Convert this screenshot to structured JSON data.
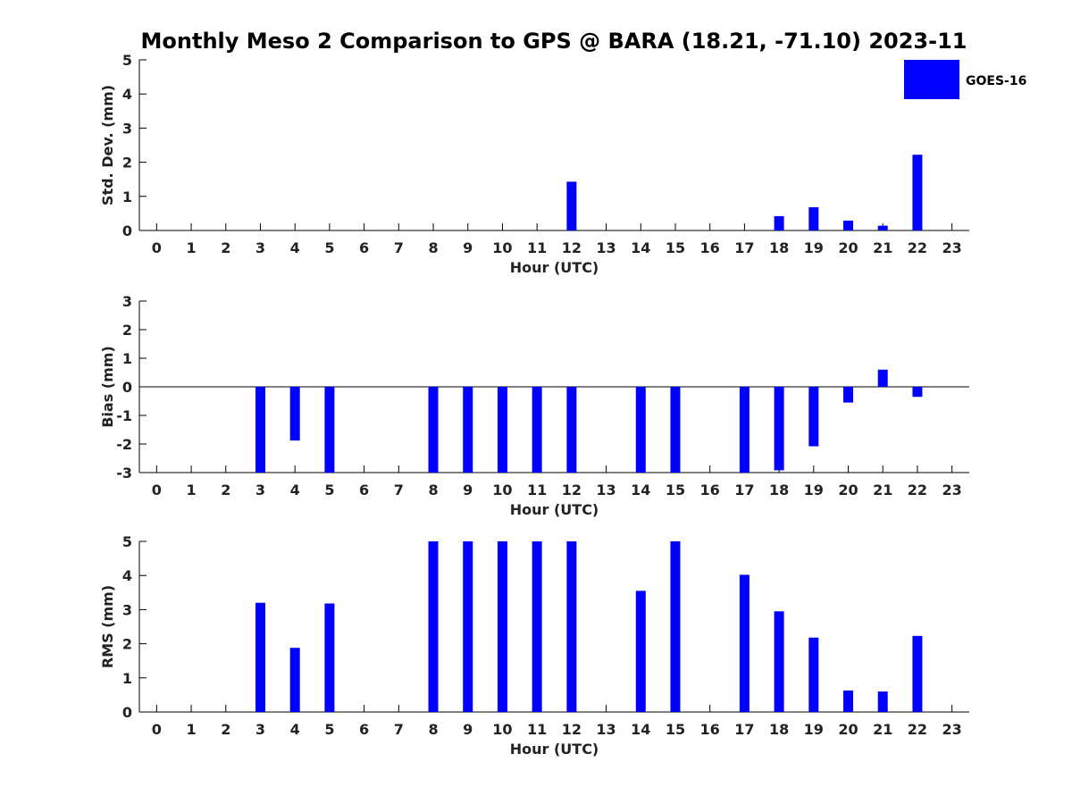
{
  "chart_data": {
    "title": "Monthly Meso 2 Comparison to GPS @ BARA (18.21, -71.10) 2023-11",
    "legend": {
      "label": "GOES-16",
      "color": "#0000FF",
      "placement": "top-right"
    },
    "bar_color": "#0000FF",
    "panels": [
      {
        "type": "bar",
        "ylabel": "Std. Dev. (mm)",
        "xlabel": "Hour (UTC)",
        "ylim": [
          0,
          5
        ],
        "yticks": [
          0,
          1,
          2,
          3,
          4,
          5
        ],
        "xticks": [
          0,
          1,
          2,
          3,
          4,
          5,
          6,
          7,
          8,
          9,
          10,
          11,
          12,
          13,
          14,
          15,
          16,
          17,
          18,
          19,
          20,
          21,
          22,
          23
        ],
        "values": [
          null,
          null,
          null,
          null,
          null,
          null,
          null,
          null,
          null,
          null,
          null,
          null,
          1.43,
          null,
          null,
          null,
          null,
          null,
          0.42,
          0.68,
          0.29,
          0.14,
          2.22,
          null
        ],
        "zero_line": false
      },
      {
        "type": "bar",
        "ylabel": "Bias (mm)",
        "xlabel": "Hour (UTC)",
        "ylim": [
          -3,
          3
        ],
        "yticks": [
          -3,
          -2,
          -1,
          0,
          1,
          2,
          3
        ],
        "xticks": [
          0,
          1,
          2,
          3,
          4,
          5,
          6,
          7,
          8,
          9,
          10,
          11,
          12,
          13,
          14,
          15,
          16,
          17,
          18,
          19,
          20,
          21,
          22,
          23
        ],
        "values": [
          null,
          null,
          null,
          -3,
          -1.88,
          -3,
          null,
          null,
          -3,
          -3,
          -3,
          -3,
          -3,
          null,
          -3,
          -3,
          null,
          -3,
          -2.92,
          -2.08,
          -0.55,
          0.6,
          -0.35,
          null
        ],
        "zero_line": true
      },
      {
        "type": "bar",
        "ylabel": "RMS (mm)",
        "xlabel": "Hour (UTC)",
        "ylim": [
          0,
          5
        ],
        "yticks": [
          0,
          1,
          2,
          3,
          4,
          5
        ],
        "xticks": [
          0,
          1,
          2,
          3,
          4,
          5,
          6,
          7,
          8,
          9,
          10,
          11,
          12,
          13,
          14,
          15,
          16,
          17,
          18,
          19,
          20,
          21,
          22,
          23
        ],
        "values": [
          null,
          null,
          null,
          3.2,
          1.88,
          3.18,
          null,
          null,
          5,
          5,
          5,
          5,
          5,
          null,
          3.55,
          5,
          null,
          4.02,
          2.95,
          2.18,
          0.63,
          0.6,
          2.23,
          null
        ],
        "zero_line": false
      }
    ]
  }
}
